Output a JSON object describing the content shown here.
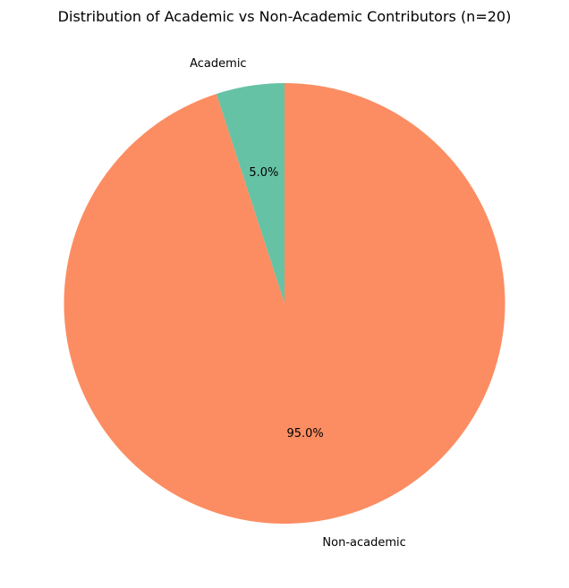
{
  "chart_data": {
    "type": "pie",
    "title": "Distribution of Academic vs Non-Academic Contributors (n=20)",
    "categories": [
      "Academic",
      "Non-academic"
    ],
    "values": [
      1,
      19
    ],
    "percent_labels": [
      "5.0%",
      "95.0%"
    ],
    "colors": [
      "#66c2a5",
      "#fc8d62"
    ],
    "start_angle_deg": 90,
    "direction": "counterclockwise"
  }
}
